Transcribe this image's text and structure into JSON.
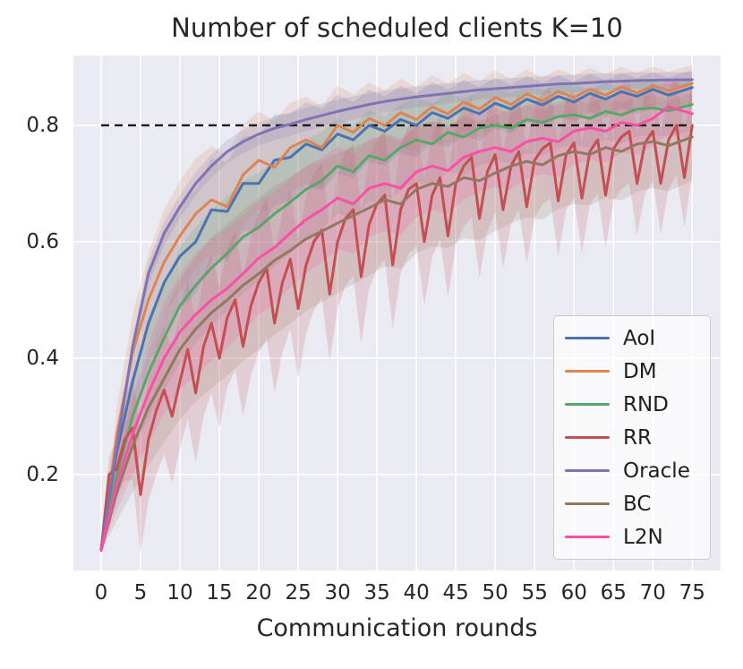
{
  "title": "Number of scheduled clients K=10",
  "xlabel": "Communication rounds",
  "colors": {
    "plot_background": "#eaeaf2",
    "grid": "#ffffff",
    "text": "#262626",
    "dashed_reference": "#1a1a1a",
    "legend_border": "#cccccc"
  },
  "chart_data": {
    "type": "line",
    "title": "Number of scheduled clients K=10",
    "xlabel": "Communication rounds",
    "ylabel": "",
    "grid": true,
    "legend_position": "lower right",
    "xlim": [
      -3.52,
      78.6
    ],
    "ylim": [
      0.035,
      0.92
    ],
    "xticks": [
      0,
      5,
      10,
      15,
      20,
      25,
      30,
      35,
      40,
      45,
      50,
      55,
      60,
      65,
      70,
      75
    ],
    "yticks": [
      0.2,
      0.4,
      0.6,
      0.8
    ],
    "hline": {
      "y": 0.8,
      "x_range": [
        0,
        75
      ],
      "style": "dashed",
      "color": "#1a1a1a"
    },
    "band_opacity": 0.18,
    "series": [
      {
        "name": "AoI",
        "color": "#4c72b0",
        "x": [
          0,
          2,
          4,
          6,
          8,
          10,
          12,
          14,
          16,
          18,
          20,
          22,
          24,
          26,
          28,
          30,
          32,
          34,
          36,
          38,
          40,
          42,
          44,
          46,
          48,
          50,
          52,
          54,
          56,
          58,
          60,
          62,
          64,
          66,
          68,
          70,
          72,
          75
        ],
        "y": [
          0.07,
          0.24,
          0.36,
          0.46,
          0.53,
          0.575,
          0.6,
          0.655,
          0.652,
          0.7,
          0.7,
          0.74,
          0.745,
          0.768,
          0.758,
          0.785,
          0.775,
          0.8,
          0.79,
          0.81,
          0.8,
          0.822,
          0.812,
          0.83,
          0.82,
          0.838,
          0.828,
          0.845,
          0.835,
          0.85,
          0.84,
          0.855,
          0.845,
          0.858,
          0.85,
          0.862,
          0.852,
          0.865
        ],
        "band": [
          0,
          0.04,
          0.06,
          0.075,
          0.085,
          0.09,
          0.09,
          0.088,
          0.085,
          0.082,
          0.08,
          0.078,
          0.075,
          0.072,
          0.07,
          0.068,
          0.065,
          0.062,
          0.06,
          0.058,
          0.055,
          0.052,
          0.05,
          0.048,
          0.046,
          0.044,
          0.042,
          0.04,
          0.038,
          0.036,
          0.035,
          0.034,
          0.033,
          0.032,
          0.031,
          0.03,
          0.03,
          0.03
        ]
      },
      {
        "name": "DM",
        "color": "#dd8452",
        "x": [
          0,
          2,
          4,
          6,
          8,
          10,
          12,
          14,
          16,
          18,
          20,
          22,
          24,
          26,
          28,
          30,
          32,
          34,
          36,
          38,
          40,
          42,
          44,
          46,
          48,
          50,
          52,
          54,
          56,
          58,
          60,
          62,
          64,
          66,
          68,
          70,
          72,
          75
        ],
        "y": [
          0.07,
          0.27,
          0.41,
          0.5,
          0.565,
          0.61,
          0.648,
          0.672,
          0.66,
          0.715,
          0.74,
          0.728,
          0.762,
          0.775,
          0.762,
          0.8,
          0.788,
          0.812,
          0.8,
          0.822,
          0.81,
          0.832,
          0.82,
          0.84,
          0.828,
          0.848,
          0.836,
          0.854,
          0.842,
          0.858,
          0.848,
          0.862,
          0.852,
          0.866,
          0.856,
          0.868,
          0.86,
          0.872
        ],
        "band": [
          0,
          0.045,
          0.065,
          0.08,
          0.09,
          0.095,
          0.095,
          0.092,
          0.09,
          0.087,
          0.084,
          0.08,
          0.077,
          0.074,
          0.071,
          0.068,
          0.065,
          0.062,
          0.06,
          0.058,
          0.056,
          0.054,
          0.052,
          0.05,
          0.048,
          0.046,
          0.044,
          0.042,
          0.04,
          0.039,
          0.038,
          0.037,
          0.036,
          0.035,
          0.034,
          0.033,
          0.032,
          0.032
        ]
      },
      {
        "name": "RND",
        "color": "#55a868",
        "x": [
          0,
          2,
          4,
          6,
          8,
          10,
          12,
          14,
          16,
          18,
          20,
          22,
          24,
          26,
          28,
          30,
          32,
          34,
          36,
          38,
          40,
          42,
          44,
          46,
          48,
          50,
          52,
          54,
          56,
          58,
          60,
          62,
          64,
          66,
          68,
          70,
          72,
          75
        ],
        "y": [
          0.07,
          0.2,
          0.3,
          0.375,
          0.435,
          0.49,
          0.525,
          0.555,
          0.58,
          0.608,
          0.625,
          0.648,
          0.668,
          0.69,
          0.705,
          0.73,
          0.72,
          0.748,
          0.74,
          0.762,
          0.775,
          0.768,
          0.788,
          0.78,
          0.795,
          0.8,
          0.795,
          0.81,
          0.805,
          0.815,
          0.818,
          0.812,
          0.824,
          0.818,
          0.828,
          0.83,
          0.825,
          0.836
        ],
        "band": [
          0,
          0.04,
          0.06,
          0.08,
          0.09,
          0.1,
          0.1,
          0.1,
          0.098,
          0.096,
          0.094,
          0.09,
          0.088,
          0.086,
          0.084,
          0.082,
          0.08,
          0.078,
          0.076,
          0.074,
          0.072,
          0.07,
          0.068,
          0.066,
          0.064,
          0.062,
          0.06,
          0.058,
          0.056,
          0.054,
          0.052,
          0.05,
          0.049,
          0.048,
          0.047,
          0.046,
          0.045,
          0.045
        ]
      },
      {
        "name": "RR",
        "color": "#c44e52",
        "x": [
          0,
          1,
          2,
          3,
          4,
          5,
          6,
          7,
          8,
          9,
          10,
          11,
          12,
          13,
          14,
          15,
          16,
          17,
          18,
          19,
          20,
          21,
          22,
          23,
          24,
          25,
          26,
          27,
          28,
          29,
          30,
          31,
          32,
          33,
          34,
          35,
          36,
          37,
          38,
          39,
          40,
          41,
          42,
          43,
          44,
          45,
          46,
          47,
          48,
          49,
          50,
          51,
          52,
          53,
          54,
          55,
          56,
          57,
          58,
          59,
          60,
          61,
          62,
          63,
          64,
          65,
          66,
          67,
          68,
          69,
          70,
          71,
          72,
          73,
          74,
          75
        ],
        "y": [
          0.07,
          0.2,
          0.21,
          0.26,
          0.28,
          0.165,
          0.26,
          0.31,
          0.345,
          0.3,
          0.36,
          0.415,
          0.34,
          0.42,
          0.46,
          0.4,
          0.47,
          0.5,
          0.42,
          0.49,
          0.53,
          0.555,
          0.46,
          0.53,
          0.57,
          0.485,
          0.56,
          0.6,
          0.62,
          0.51,
          0.6,
          0.64,
          0.655,
          0.54,
          0.63,
          0.665,
          0.68,
          0.56,
          0.655,
          0.69,
          0.7,
          0.6,
          0.68,
          0.71,
          0.61,
          0.7,
          0.73,
          0.745,
          0.64,
          0.72,
          0.75,
          0.655,
          0.73,
          0.755,
          0.66,
          0.74,
          0.76,
          0.77,
          0.67,
          0.75,
          0.77,
          0.675,
          0.755,
          0.775,
          0.68,
          0.76,
          0.78,
          0.79,
          0.7,
          0.77,
          0.79,
          0.7,
          0.775,
          0.8,
          0.71,
          0.8
        ],
        "band": [
          0,
          0.03,
          0.05,
          0.07,
          0.09,
          0.1,
          0.105,
          0.11,
          0.11,
          0.115,
          0.115,
          0.12,
          0.12,
          0.12,
          0.12,
          0.12,
          0.12,
          0.12,
          0.12,
          0.12,
          0.12,
          0.12,
          0.12,
          0.12,
          0.12,
          0.12,
          0.118,
          0.118,
          0.116,
          0.116,
          0.115,
          0.115,
          0.114,
          0.114,
          0.112,
          0.112,
          0.11,
          0.11,
          0.11,
          0.11,
          0.108,
          0.108,
          0.106,
          0.106,
          0.105,
          0.105,
          0.104,
          0.104,
          0.102,
          0.102,
          0.1,
          0.1,
          0.1,
          0.1,
          0.098,
          0.098,
          0.096,
          0.096,
          0.095,
          0.095,
          0.094,
          0.094,
          0.092,
          0.092,
          0.09,
          0.09,
          0.09,
          0.09,
          0.088,
          0.088,
          0.086,
          0.086,
          0.085,
          0.085,
          0.084,
          0.084
        ]
      },
      {
        "name": "Oracle",
        "color": "#8172b3",
        "x": [
          0,
          2,
          4,
          6,
          8,
          10,
          12,
          14,
          16,
          18,
          20,
          22,
          24,
          26,
          28,
          30,
          32,
          34,
          36,
          38,
          40,
          42,
          44,
          46,
          48,
          50,
          52,
          54,
          56,
          58,
          60,
          62,
          64,
          66,
          68,
          70,
          72,
          75
        ],
        "y": [
          0.07,
          0.25,
          0.42,
          0.545,
          0.615,
          0.66,
          0.7,
          0.73,
          0.755,
          0.772,
          0.785,
          0.795,
          0.802,
          0.81,
          0.817,
          0.824,
          0.83,
          0.836,
          0.841,
          0.845,
          0.849,
          0.852,
          0.855,
          0.858,
          0.861,
          0.863,
          0.865,
          0.867,
          0.869,
          0.871,
          0.872,
          0.8735,
          0.875,
          0.876,
          0.877,
          0.8775,
          0.878,
          0.8785
        ],
        "band": [
          0,
          0.01,
          0.015,
          0.02,
          0.02,
          0.02,
          0.02,
          0.02,
          0.02,
          0.02,
          0.02,
          0.02,
          0.02,
          0.02,
          0.02,
          0.02,
          0.02,
          0.019,
          0.019,
          0.018,
          0.018,
          0.018,
          0.017,
          0.017,
          0.017,
          0.016,
          0.016,
          0.016,
          0.015,
          0.015,
          0.015,
          0.015,
          0.014,
          0.014,
          0.014,
          0.013,
          0.013,
          0.013
        ]
      },
      {
        "name": "BC",
        "color": "#937860",
        "x": [
          0,
          2,
          4,
          6,
          8,
          10,
          12,
          14,
          16,
          18,
          20,
          22,
          24,
          26,
          28,
          30,
          32,
          34,
          36,
          38,
          40,
          42,
          44,
          46,
          48,
          50,
          52,
          54,
          56,
          58,
          60,
          62,
          64,
          66,
          68,
          70,
          72,
          75
        ],
        "y": [
          0.07,
          0.17,
          0.25,
          0.315,
          0.365,
          0.415,
          0.45,
          0.478,
          0.5,
          0.525,
          0.545,
          0.568,
          0.585,
          0.605,
          0.618,
          0.632,
          0.645,
          0.658,
          0.672,
          0.665,
          0.69,
          0.7,
          0.695,
          0.71,
          0.705,
          0.718,
          0.73,
          0.738,
          0.732,
          0.748,
          0.755,
          0.75,
          0.762,
          0.755,
          0.768,
          0.772,
          0.765,
          0.78
        ],
        "band": [
          0,
          0.05,
          0.08,
          0.1,
          0.11,
          0.12,
          0.125,
          0.13,
          0.13,
          0.13,
          0.13,
          0.128,
          0.126,
          0.124,
          0.122,
          0.12,
          0.118,
          0.116,
          0.114,
          0.112,
          0.11,
          0.108,
          0.106,
          0.104,
          0.102,
          0.1,
          0.098,
          0.096,
          0.094,
          0.092,
          0.09,
          0.088,
          0.086,
          0.084,
          0.082,
          0.08,
          0.078,
          0.075
        ]
      },
      {
        "name": "L2N",
        "color": "#f94fa4",
        "x": [
          0,
          2,
          4,
          6,
          8,
          10,
          12,
          14,
          16,
          18,
          20,
          22,
          24,
          26,
          28,
          30,
          32,
          34,
          36,
          38,
          40,
          42,
          44,
          46,
          48,
          50,
          52,
          54,
          56,
          58,
          60,
          62,
          64,
          66,
          68,
          70,
          72,
          75
        ],
        "y": [
          0.07,
          0.185,
          0.27,
          0.34,
          0.4,
          0.445,
          0.475,
          0.5,
          0.52,
          0.545,
          0.572,
          0.59,
          0.615,
          0.638,
          0.655,
          0.675,
          0.665,
          0.692,
          0.7,
          0.692,
          0.72,
          0.73,
          0.722,
          0.745,
          0.755,
          0.762,
          0.755,
          0.772,
          0.778,
          0.772,
          0.79,
          0.796,
          0.79,
          0.805,
          0.8,
          0.812,
          0.832,
          0.82
        ],
        "band": [
          0,
          0.045,
          0.07,
          0.085,
          0.095,
          0.1,
          0.105,
          0.105,
          0.103,
          0.1,
          0.098,
          0.096,
          0.094,
          0.092,
          0.09,
          0.088,
          0.086,
          0.084,
          0.082,
          0.08,
          0.078,
          0.076,
          0.074,
          0.072,
          0.07,
          0.068,
          0.066,
          0.064,
          0.062,
          0.06,
          0.058,
          0.056,
          0.054,
          0.052,
          0.05,
          0.048,
          0.046,
          0.045
        ]
      }
    ]
  }
}
